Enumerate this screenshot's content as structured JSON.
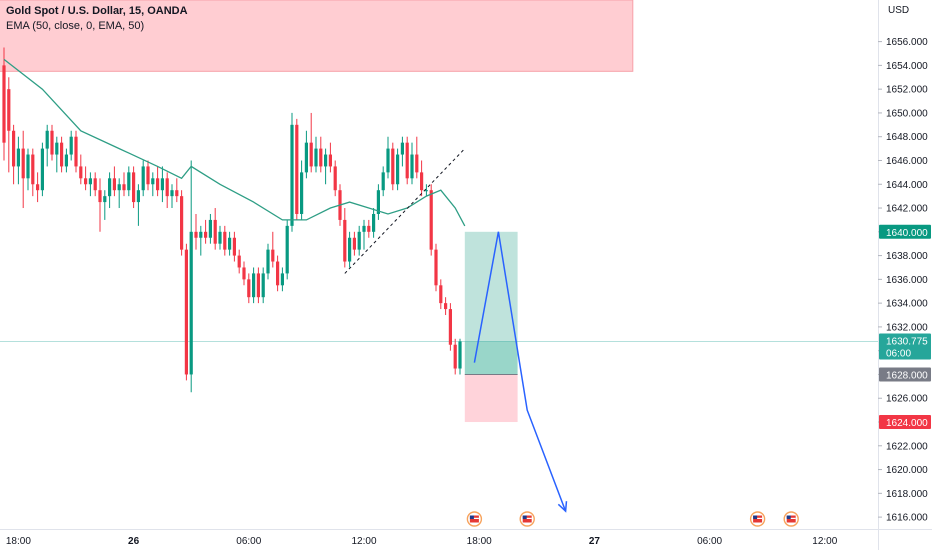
{
  "legend": {
    "symbol": "Gold Spot / U.S. Dollar, 15, OANDA",
    "indicator": "EMA (50, close, 0, EMA, 50)"
  },
  "colors": {
    "up": "#089981",
    "down": "#f23645",
    "ema": "#2e9e85",
    "supply_zone": "#ffcdd2",
    "target_zone": "#bfe3dc",
    "entry_zone": "#99d6c9",
    "stop_zone": "#ffd3da",
    "arrow": "#2962ff",
    "last_price_bg": "#26a69a",
    "entry_bg": "#787b86",
    "target_bg": "#089981",
    "stop_bg": "#f23645"
  },
  "chart_data": {
    "type": "candlestick",
    "currency": "USD",
    "ylim": [
      1615.0,
      1659.5
    ],
    "y_ticks": [
      1616,
      1618,
      1620,
      1622,
      1624,
      1626,
      1628,
      1630,
      1632,
      1634,
      1636,
      1638,
      1640,
      1642,
      1644,
      1646,
      1648,
      1650,
      1652,
      1654,
      1656
    ],
    "x_labels": [
      {
        "bar": 3,
        "label": "18:00",
        "bold": false
      },
      {
        "bar": 27,
        "label": "26",
        "bold": true
      },
      {
        "bar": 51,
        "label": "06:00",
        "bold": false
      },
      {
        "bar": 75,
        "label": "12:00",
        "bold": false
      },
      {
        "bar": 99,
        "label": "18:00",
        "bold": false
      },
      {
        "bar": 123,
        "label": "27",
        "bold": true
      },
      {
        "bar": 147,
        "label": "06:00",
        "bold": false
      },
      {
        "bar": 171,
        "label": "12:00",
        "bold": false
      }
    ],
    "candles_first_bar": 0,
    "candles": [
      [
        1654.0,
        1655.5,
        1646.0,
        1647.5
      ],
      [
        1652.0,
        1653.0,
        1645.0,
        1648.5
      ],
      [
        1648.5,
        1649.0,
        1644.0,
        1645.5
      ],
      [
        1645.5,
        1648.0,
        1644.0,
        1647.0
      ],
      [
        1647.0,
        1648.5,
        1642.0,
        1644.5
      ],
      [
        1644.5,
        1647.0,
        1643.5,
        1646.5
      ],
      [
        1646.5,
        1647.0,
        1643.0,
        1644.0
      ],
      [
        1644.0,
        1645.0,
        1642.5,
        1643.5
      ],
      [
        1643.5,
        1647.5,
        1643.0,
        1647.0
      ],
      [
        1647.0,
        1649.0,
        1645.5,
        1648.5
      ],
      [
        1648.5,
        1649.0,
        1646.0,
        1646.5
      ],
      [
        1646.5,
        1648.0,
        1645.0,
        1647.5
      ],
      [
        1647.5,
        1648.0,
        1645.0,
        1645.5
      ],
      [
        1645.5,
        1647.0,
        1645.0,
        1646.5
      ],
      [
        1646.5,
        1648.5,
        1646.0,
        1648.0
      ],
      [
        1648.0,
        1648.5,
        1645.0,
        1645.5
      ],
      [
        1645.5,
        1646.5,
        1644.0,
        1644.5
      ],
      [
        1644.5,
        1645.5,
        1643.5,
        1644.0
      ],
      [
        1644.0,
        1645.0,
        1643.0,
        1644.5
      ],
      [
        1644.5,
        1645.0,
        1643.0,
        1643.5
      ],
      [
        1643.5,
        1644.5,
        1640.0,
        1642.5
      ],
      [
        1642.5,
        1643.5,
        1641.0,
        1643.0
      ],
      [
        1643.0,
        1645.0,
        1642.0,
        1644.5
      ],
      [
        1644.5,
        1645.5,
        1643.0,
        1643.5
      ],
      [
        1643.5,
        1644.5,
        1642.0,
        1644.0
      ],
      [
        1644.0,
        1645.0,
        1643.0,
        1643.5
      ],
      [
        1643.5,
        1645.5,
        1643.0,
        1645.0
      ],
      [
        1645.0,
        1645.5,
        1642.0,
        1642.5
      ],
      [
        1642.5,
        1644.0,
        1640.5,
        1643.5
      ],
      [
        1643.5,
        1646.0,
        1643.0,
        1645.5
      ],
      [
        1645.5,
        1646.0,
        1643.5,
        1644.0
      ],
      [
        1644.0,
        1645.0,
        1643.0,
        1644.5
      ],
      [
        1644.5,
        1645.5,
        1643.0,
        1643.5
      ],
      [
        1643.5,
        1645.5,
        1642.5,
        1644.5
      ],
      [
        1644.5,
        1645.0,
        1642.0,
        1643.0
      ],
      [
        1643.0,
        1644.0,
        1642.0,
        1643.5
      ],
      [
        1643.5,
        1644.5,
        1642.5,
        1643.0
      ],
      [
        1643.0,
        1643.5,
        1638.0,
        1638.5
      ],
      [
        1638.5,
        1639.0,
        1627.5,
        1628.0
      ],
      [
        1628.0,
        1646.0,
        1626.5,
        1640.0
      ],
      [
        1640.0,
        1641.5,
        1638.5,
        1639.5
      ],
      [
        1639.5,
        1640.5,
        1638.0,
        1640.0
      ],
      [
        1640.0,
        1641.0,
        1639.0,
        1639.5
      ],
      [
        1639.5,
        1641.5,
        1639.0,
        1641.0
      ],
      [
        1641.0,
        1642.0,
        1638.5,
        1639.0
      ],
      [
        1639.0,
        1640.5,
        1638.5,
        1640.0
      ],
      [
        1640.0,
        1640.5,
        1638.0,
        1638.5
      ],
      [
        1638.5,
        1640.0,
        1638.0,
        1639.5
      ],
      [
        1639.5,
        1640.0,
        1637.5,
        1638.0
      ],
      [
        1638.0,
        1638.5,
        1636.5,
        1637.0
      ],
      [
        1637.0,
        1637.5,
        1635.5,
        1636.0
      ],
      [
        1636.0,
        1636.5,
        1634.0,
        1634.5
      ],
      [
        1634.5,
        1637.0,
        1634.0,
        1636.5
      ],
      [
        1636.5,
        1637.0,
        1634.0,
        1634.5
      ],
      [
        1634.5,
        1637.0,
        1634.0,
        1636.5
      ],
      [
        1636.5,
        1639.0,
        1636.0,
        1638.5
      ],
      [
        1638.5,
        1640.0,
        1637.0,
        1637.5
      ],
      [
        1637.5,
        1638.0,
        1635.0,
        1635.5
      ],
      [
        1635.5,
        1637.0,
        1635.0,
        1636.5
      ],
      [
        1636.5,
        1641.0,
        1636.0,
        1640.5
      ],
      [
        1640.5,
        1650.0,
        1640.0,
        1649.0
      ],
      [
        1649.0,
        1649.5,
        1641.0,
        1641.5
      ],
      [
        1641.5,
        1646.0,
        1641.0,
        1645.0
      ],
      [
        1645.0,
        1648.5,
        1644.5,
        1647.5
      ],
      [
        1647.5,
        1650.0,
        1645.0,
        1645.5
      ],
      [
        1645.5,
        1648.0,
        1645.0,
        1647.0
      ],
      [
        1647.0,
        1648.0,
        1645.0,
        1645.5
      ],
      [
        1645.5,
        1647.0,
        1644.0,
        1646.5
      ],
      [
        1646.5,
        1647.5,
        1645.0,
        1645.5
      ],
      [
        1645.5,
        1646.0,
        1643.0,
        1643.5
      ],
      [
        1643.5,
        1644.0,
        1640.5,
        1641.0
      ],
      [
        1641.0,
        1642.0,
        1637.0,
        1637.5
      ],
      [
        1637.5,
        1640.0,
        1637.0,
        1639.5
      ],
      [
        1639.5,
        1640.0,
        1638.0,
        1638.5
      ],
      [
        1638.5,
        1640.5,
        1638.0,
        1640.0
      ],
      [
        1640.0,
        1641.0,
        1638.5,
        1640.5
      ],
      [
        1640.5,
        1641.0,
        1639.5,
        1640.0
      ],
      [
        1640.0,
        1642.0,
        1639.5,
        1641.5
      ],
      [
        1641.5,
        1644.0,
        1641.0,
        1643.5
      ],
      [
        1643.5,
        1645.5,
        1643.0,
        1645.0
      ],
      [
        1645.0,
        1648.0,
        1644.5,
        1647.0
      ],
      [
        1647.0,
        1647.5,
        1643.5,
        1644.0
      ],
      [
        1644.0,
        1647.0,
        1643.5,
        1646.5
      ],
      [
        1646.5,
        1648.0,
        1645.5,
        1647.5
      ],
      [
        1647.5,
        1648.0,
        1644.0,
        1644.5
      ],
      [
        1644.5,
        1647.5,
        1644.0,
        1646.5
      ],
      [
        1646.5,
        1648.0,
        1644.5,
        1645.0
      ],
      [
        1645.0,
        1646.0,
        1643.0,
        1643.5
      ],
      [
        1643.5,
        1644.0,
        1643.0,
        1643.5
      ],
      [
        1643.5,
        1644.0,
        1638.0,
        1638.5
      ],
      [
        1638.5,
        1639.0,
        1635.0,
        1635.5
      ],
      [
        1635.5,
        1636.0,
        1633.5,
        1634.0
      ],
      [
        1634.0,
        1634.5,
        1633.0,
        1633.5
      ],
      [
        1633.5,
        1634.0,
        1630.0,
        1630.5
      ],
      [
        1630.5,
        1631.0,
        1628.0,
        1628.5
      ],
      [
        1628.5,
        1631.0,
        1628.0,
        1630.775
      ]
    ],
    "ema": {
      "name": "EMA (50, close, 0, EMA, 50)",
      "points": [
        [
          0,
          1654.5
        ],
        [
          8,
          1652.0
        ],
        [
          16,
          1648.5
        ],
        [
          24,
          1647.0
        ],
        [
          32,
          1645.5
        ],
        [
          37,
          1644.5
        ],
        [
          39,
          1645.5
        ],
        [
          45,
          1644.0
        ],
        [
          52,
          1642.5
        ],
        [
          58,
          1641.0
        ],
        [
          63,
          1641.0
        ],
        [
          68,
          1642.0
        ],
        [
          72,
          1642.5
        ],
        [
          76,
          1642.0
        ],
        [
          80,
          1641.5
        ],
        [
          84,
          1642.0
        ],
        [
          88,
          1643.0
        ],
        [
          91,
          1643.5
        ],
        [
          94,
          1642.0
        ],
        [
          96,
          1640.5
        ]
      ]
    },
    "annotations": {
      "supply_zone": {
        "from_bar": -1,
        "to_bar": 131,
        "low": 1653.5,
        "high": 1659.5
      },
      "trendline": {
        "from": [
          71,
          1636.5
        ],
        "to": [
          96,
          1647.0
        ]
      },
      "position": {
        "from_bar": 96,
        "to_bar": 107,
        "target": 1640.0,
        "entry": 1628.0,
        "stop": 1624.0,
        "last": 1630.775
      },
      "projection": [
        [
          98,
          1629.0
        ],
        [
          103,
          1640.0
        ],
        [
          109,
          1625.0
        ],
        [
          117,
          1616.5
        ]
      ],
      "event_markers": [
        {
          "bar": 98
        },
        {
          "bar": 109
        },
        {
          "bar": 157
        },
        {
          "bar": 164
        }
      ]
    },
    "price_badges": {
      "target": "1640.000",
      "last": "1630.775",
      "countdown": "06:00",
      "entry": "1628.000",
      "stop": "1624.000"
    }
  }
}
